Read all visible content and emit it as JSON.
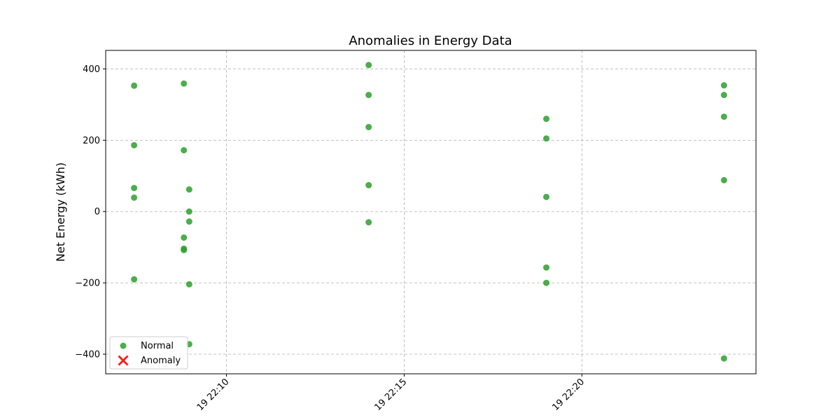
{
  "chart_data": {
    "type": "scatter",
    "title": "Anomalies in Energy Data",
    "xlabel": "",
    "ylabel": "Net Energy (kWh)",
    "x_ticks": [
      "19 22:10",
      "19 22:15",
      "19 22:20"
    ],
    "x_tick_minutes": [
      10,
      15,
      20
    ],
    "xlim_minutes": [
      6.6,
      24.9
    ],
    "y_ticks": [
      -400,
      -200,
      0,
      200,
      400
    ],
    "ylim": [
      -455,
      452
    ],
    "grid": true,
    "legend_position": "lower-left",
    "colors": {
      "normal": "#2ca02c",
      "anomaly": "#ff0000"
    },
    "series": [
      {
        "name": "Normal",
        "marker": "circle",
        "points": [
          {
            "x": 7.4,
            "y": 353
          },
          {
            "x": 7.4,
            "y": 186
          },
          {
            "x": 7.4,
            "y": 66
          },
          {
            "x": 7.4,
            "y": 39
          },
          {
            "x": 7.4,
            "y": -190
          },
          {
            "x": 8.8,
            "y": 359
          },
          {
            "x": 8.8,
            "y": 172
          },
          {
            "x": 8.8,
            "y": -73
          },
          {
            "x": 8.8,
            "y": -104
          },
          {
            "x": 8.8,
            "y": -108
          },
          {
            "x": 8.95,
            "y": 62
          },
          {
            "x": 8.95,
            "y": 0
          },
          {
            "x": 8.95,
            "y": -28
          },
          {
            "x": 8.95,
            "y": -204
          },
          {
            "x": 8.95,
            "y": -372
          },
          {
            "x": 14.0,
            "y": 411
          },
          {
            "x": 14.0,
            "y": 327
          },
          {
            "x": 14.0,
            "y": 237
          },
          {
            "x": 14.0,
            "y": 74
          },
          {
            "x": 14.0,
            "y": -30
          },
          {
            "x": 19.0,
            "y": 260
          },
          {
            "x": 19.0,
            "y": 205
          },
          {
            "x": 19.0,
            "y": 41
          },
          {
            "x": 19.0,
            "y": -157
          },
          {
            "x": 19.0,
            "y": -200
          },
          {
            "x": 24.0,
            "y": 354
          },
          {
            "x": 24.0,
            "y": 327
          },
          {
            "x": 24.0,
            "y": 266
          },
          {
            "x": 24.0,
            "y": 88
          },
          {
            "x": 24.0,
            "y": -412
          }
        ]
      },
      {
        "name": "Anomaly",
        "marker": "x",
        "points": []
      }
    ]
  }
}
